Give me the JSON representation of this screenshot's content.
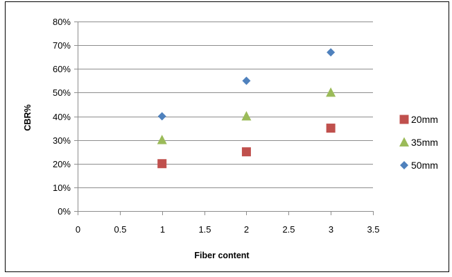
{
  "chart_data": {
    "type": "scatter",
    "title": "",
    "xlabel": "Fiber content",
    "ylabel": "CBR%",
    "xlim": [
      0,
      3.5
    ],
    "ylim": [
      0,
      0.8
    ],
    "x_ticks": [
      0,
      0.5,
      1,
      1.5,
      2,
      2.5,
      3,
      3.5
    ],
    "x_tick_labels": [
      "0",
      "0.5",
      "1",
      "1.5",
      "2",
      "2.5",
      "3",
      "3.5"
    ],
    "y_ticks": [
      0,
      0.1,
      0.2,
      0.3,
      0.4,
      0.5,
      0.6,
      0.7,
      0.8
    ],
    "y_tick_labels": [
      "0%",
      "10%",
      "20%",
      "30%",
      "40%",
      "50%",
      "60%",
      "70%",
      "80%"
    ],
    "grid": "horizontal",
    "legend_position": "right",
    "series": [
      {
        "name": "20mm",
        "marker": "square",
        "color": "#c0504d",
        "x": [
          1,
          2,
          3
        ],
        "y": [
          0.2,
          0.25,
          0.35
        ]
      },
      {
        "name": "35mm",
        "marker": "triangle",
        "color": "#9bbb59",
        "x": [
          1,
          2,
          3
        ],
        "y": [
          0.3,
          0.4,
          0.5
        ]
      },
      {
        "name": "50mm",
        "marker": "diamond",
        "color": "#4f81bd",
        "x": [
          1,
          2,
          3
        ],
        "y": [
          0.4,
          0.55,
          0.67
        ]
      }
    ]
  }
}
